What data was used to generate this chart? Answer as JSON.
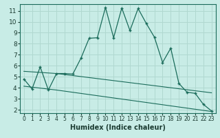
{
  "xlabel": "Humidex (Indice chaleur)",
  "background_color": "#c8ece6",
  "grid_color": "#b0d8d0",
  "line_color": "#1a6b5a",
  "xlim": [
    -0.5,
    23.5
  ],
  "ylim": [
    1.7,
    11.6
  ],
  "xticks": [
    0,
    1,
    2,
    3,
    4,
    5,
    6,
    7,
    8,
    9,
    10,
    11,
    12,
    13,
    14,
    15,
    16,
    17,
    18,
    19,
    20,
    21,
    22,
    23
  ],
  "yticks": [
    2,
    3,
    4,
    5,
    6,
    7,
    8,
    9,
    10,
    11
  ],
  "series1_x": [
    0,
    1,
    2,
    3,
    4,
    5,
    6,
    7,
    8,
    9,
    10,
    11,
    12,
    13,
    14,
    15,
    16,
    17,
    18,
    19,
    20,
    21,
    22,
    23
  ],
  "series1_y": [
    4.8,
    3.9,
    5.9,
    3.8,
    5.3,
    5.3,
    5.25,
    6.7,
    8.5,
    8.55,
    11.3,
    8.55,
    11.25,
    9.2,
    11.2,
    9.85,
    8.6,
    6.3,
    7.6,
    4.4,
    3.6,
    3.5,
    2.5,
    1.9
  ],
  "series2_x": [
    0,
    4,
    23
  ],
  "series2_y": [
    5.5,
    5.3,
    3.55
  ],
  "series3_x": [
    0,
    4,
    23
  ],
  "series3_y": [
    4.15,
    3.8,
    1.85
  ]
}
